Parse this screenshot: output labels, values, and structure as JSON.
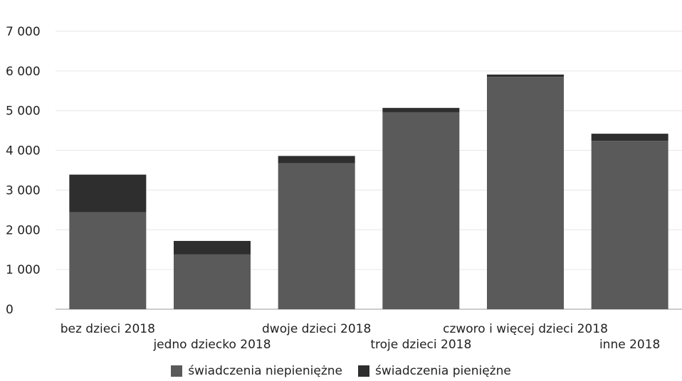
{
  "chart_data": {
    "type": "bar",
    "stacked": true,
    "categories": [
      "bez dzieci 2018",
      "jedno dziecko 2018",
      "dwoje dzieci 2018",
      "troje dzieci 2018",
      "czworo i więcej dzieci 2018",
      "inne 2018"
    ],
    "series": [
      {
        "name": "świadczenia niepieniężne",
        "values": [
          2440,
          1380,
          3680,
          4960,
          5850,
          4240
        ],
        "color": "#5a5a5a"
      },
      {
        "name": "świadczenia pieniężne",
        "values": [
          950,
          340,
          180,
          110,
          60,
          180
        ],
        "color": "#2e2e2e"
      }
    ],
    "ylim": [
      0,
      7000
    ],
    "yticks": [
      0,
      1000,
      2000,
      3000,
      4000,
      5000,
      6000,
      7000
    ],
    "ytick_labels": [
      "0",
      "1 000",
      "2 000",
      "3 000",
      "4 000",
      "5 000",
      "6 000",
      "7 000"
    ],
    "grid": true,
    "legend_position": "bottom"
  }
}
